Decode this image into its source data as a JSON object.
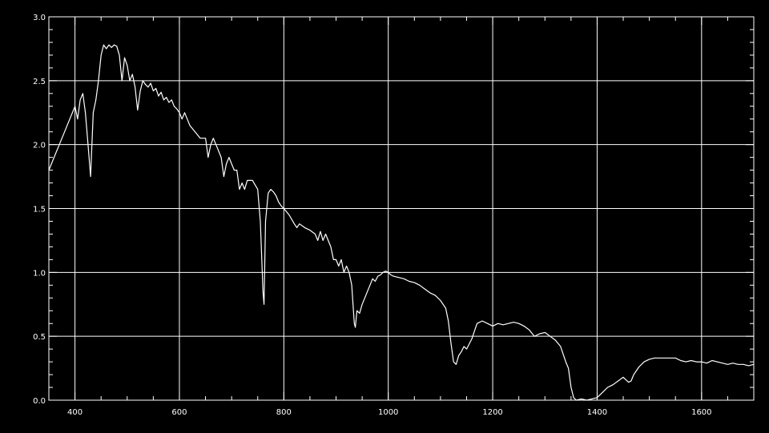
{
  "colors": {
    "background": "#000000",
    "foreground": "#ffffff"
  },
  "chart_data": {
    "type": "line",
    "title": "",
    "xlabel": "",
    "ylabel": "",
    "xlim": [
      350,
      1700
    ],
    "ylim": [
      0.0,
      3.0
    ],
    "grid": true,
    "x_ticks": [
      400,
      600,
      800,
      1000,
      1200,
      1400,
      1600
    ],
    "x_tick_labels": [
      "400",
      "600",
      "800",
      "1000",
      "1200",
      "1400",
      "1600"
    ],
    "y_ticks": [
      0.0,
      0.5,
      1.0,
      1.5,
      2.0,
      2.5,
      3.0
    ],
    "y_tick_labels": [
      "0.0",
      "0.5",
      "1.0",
      "1.5",
      "2.0",
      "2.5",
      "3.0"
    ],
    "series": [
      {
        "x": [
          350,
          360,
          380,
          400,
          405,
          410,
          415,
          420,
          425,
          430,
          435,
          440,
          445,
          450,
          455,
          460,
          465,
          470,
          475,
          480,
          485,
          490,
          495,
          500,
          505,
          510,
          515,
          520,
          525,
          530,
          535,
          540,
          545,
          550,
          555,
          560,
          565,
          570,
          575,
          580,
          585,
          590,
          595,
          600,
          605,
          610,
          620,
          630,
          640,
          650,
          655,
          660,
          665,
          670,
          675,
          680,
          685,
          690,
          695,
          700,
          705,
          710,
          715,
          720,
          725,
          730,
          740,
          750,
          755,
          760,
          762,
          765,
          770,
          775,
          780,
          785,
          790,
          795,
          800,
          810,
          820,
          825,
          830,
          840,
          850,
          860,
          865,
          870,
          875,
          880,
          885,
          890,
          895,
          900,
          905,
          910,
          915,
          920,
          925,
          930,
          935,
          937,
          940,
          945,
          950,
          955,
          960,
          965,
          970,
          975,
          980,
          985,
          990,
          995,
          1000,
          1005,
          1010,
          1020,
          1030,
          1040,
          1050,
          1060,
          1070,
          1080,
          1090,
          1100,
          1110,
          1115,
          1120,
          1125,
          1130,
          1135,
          1140,
          1145,
          1150,
          1160,
          1170,
          1180,
          1190,
          1200,
          1210,
          1220,
          1230,
          1240,
          1250,
          1260,
          1270,
          1280,
          1290,
          1300,
          1310,
          1320,
          1330,
          1340,
          1345,
          1350,
          1355,
          1360,
          1370,
          1380,
          1390,
          1400,
          1410,
          1420,
          1430,
          1440,
          1450,
          1460,
          1465,
          1470,
          1480,
          1490,
          1500,
          1510,
          1520,
          1530,
          1540,
          1550,
          1560,
          1570,
          1580,
          1590,
          1600,
          1610,
          1620,
          1630,
          1640,
          1650,
          1660,
          1670,
          1680,
          1690,
          1700
        ],
        "y": [
          1.8,
          1.9,
          2.1,
          2.3,
          2.2,
          2.35,
          2.4,
          2.25,
          2.0,
          1.75,
          2.25,
          2.35,
          2.5,
          2.7,
          2.78,
          2.75,
          2.78,
          2.76,
          2.78,
          2.77,
          2.7,
          2.5,
          2.68,
          2.62,
          2.5,
          2.55,
          2.45,
          2.27,
          2.42,
          2.5,
          2.47,
          2.45,
          2.48,
          2.42,
          2.44,
          2.38,
          2.41,
          2.35,
          2.37,
          2.33,
          2.35,
          2.3,
          2.28,
          2.25,
          2.2,
          2.25,
          2.15,
          2.1,
          2.05,
          2.05,
          1.9,
          2.0,
          2.05,
          2.0,
          1.95,
          1.9,
          1.75,
          1.85,
          1.9,
          1.85,
          1.8,
          1.8,
          1.65,
          1.7,
          1.65,
          1.72,
          1.72,
          1.65,
          1.4,
          0.85,
          0.75,
          1.4,
          1.62,
          1.65,
          1.63,
          1.6,
          1.55,
          1.52,
          1.5,
          1.45,
          1.38,
          1.35,
          1.38,
          1.35,
          1.33,
          1.3,
          1.25,
          1.32,
          1.25,
          1.3,
          1.25,
          1.2,
          1.1,
          1.1,
          1.05,
          1.1,
          1.0,
          1.05,
          1.0,
          0.9,
          0.6,
          0.57,
          0.7,
          0.68,
          0.75,
          0.8,
          0.85,
          0.9,
          0.95,
          0.93,
          0.97,
          0.98,
          1.0,
          1.01,
          1.0,
          0.98,
          0.97,
          0.96,
          0.95,
          0.93,
          0.92,
          0.9,
          0.87,
          0.84,
          0.82,
          0.78,
          0.72,
          0.62,
          0.45,
          0.3,
          0.28,
          0.35,
          0.38,
          0.42,
          0.4,
          0.48,
          0.6,
          0.62,
          0.6,
          0.58,
          0.6,
          0.59,
          0.6,
          0.61,
          0.6,
          0.58,
          0.55,
          0.5,
          0.52,
          0.53,
          0.5,
          0.47,
          0.42,
          0.3,
          0.25,
          0.1,
          0.02,
          0.0,
          0.01,
          0.0,
          0.01,
          0.02,
          0.06,
          0.1,
          0.12,
          0.15,
          0.18,
          0.14,
          0.15,
          0.2,
          0.26,
          0.3,
          0.32,
          0.33,
          0.33,
          0.33,
          0.33,
          0.33,
          0.31,
          0.3,
          0.31,
          0.3,
          0.3,
          0.29,
          0.31,
          0.3,
          0.29,
          0.28,
          0.29,
          0.28,
          0.28,
          0.27,
          0.28
        ]
      }
    ]
  }
}
